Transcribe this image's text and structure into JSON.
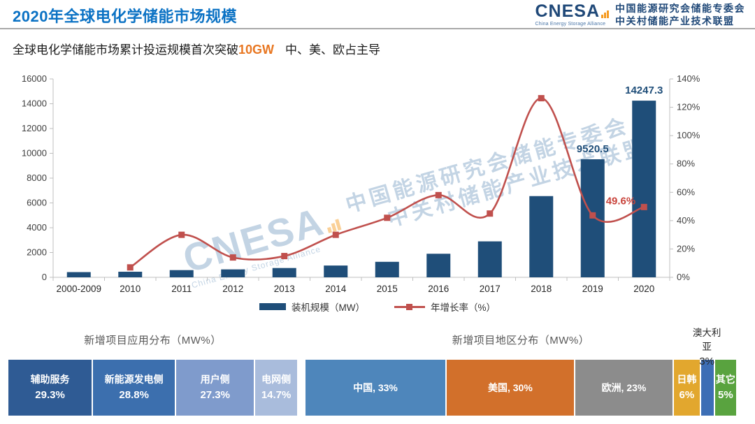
{
  "header": {
    "title": "2020年全球电化学储能市场规模",
    "logo": {
      "name": "CNESA",
      "tagline": "China Energy Storage Alliance",
      "org_line1": "中国能源研究会储能专委会",
      "org_line2": "中关村储能产业技术联盟"
    },
    "subtitle_prefix": "全球电化学储能市场累计投运规模首次突破",
    "subtitle_highlight": "10GW",
    "subtitle_suffix": "中、美、欧占主导"
  },
  "watermark": {
    "name": "CNESA",
    "tagline": "China Energy Storage Alliance",
    "cn_line1": "中国能源研究会储能专委会",
    "cn_line2": "中关村储能产业技术联盟"
  },
  "colors": {
    "axis": "#BFBFBF",
    "bar": "#1F4E79",
    "line": "#C0504D",
    "title_blue": "#0B72C4",
    "highlight_orange": "#E87722"
  },
  "chart_data": [
    {
      "type": "bar",
      "subtype": "bar-line-combo",
      "categories": [
        "2000-2009",
        "2010",
        "2011",
        "2012",
        "2013",
        "2014",
        "2015",
        "2016",
        "2017",
        "2018",
        "2019",
        "2020"
      ],
      "series": [
        {
          "name": "装机规模（MW）",
          "kind": "bar",
          "color": "#1F4E79",
          "axis": "left",
          "values": [
            420,
            450,
            580,
            640,
            750,
            950,
            1250,
            1900,
            2900,
            6550,
            9520.5,
            14247.3
          ]
        },
        {
          "name": "年增长率（%）",
          "kind": "line",
          "color": "#C0504D",
          "axis": "right",
          "values": [
            null,
            7,
            30,
            14,
            15,
            30,
            42,
            58,
            45,
            126.4,
            43.7,
            49.6
          ]
        }
      ],
      "y_left": {
        "min": 0,
        "max": 16000,
        "step": 2000
      },
      "y_right": {
        "min": 0,
        "max": 140,
        "step": 20,
        "suffix": "%"
      },
      "bar_value_labels": [
        {
          "category": "2019",
          "text": "9520.5"
        },
        {
          "category": "2020",
          "text": "14247.3"
        }
      ],
      "line_value_labels": [
        {
          "category": "2020",
          "text": "49.6%"
        }
      ],
      "legend_position": "bottom",
      "grid": false
    },
    {
      "type": "bar",
      "subtype": "stacked-horizontal",
      "title": "新增项目应用分布（MW%）",
      "segments": [
        {
          "label": "辅助服务",
          "pct": "29.3%",
          "value": 29.3,
          "color": "#2F5B94",
          "label_lines": [
            "辅助服务",
            "29.3%"
          ]
        },
        {
          "label": "新能源发电侧",
          "pct": "28.8%",
          "value": 28.8,
          "color": "#3C6FAE",
          "label_lines": [
            "新能源发电侧",
            "28.8%"
          ]
        },
        {
          "label": "用户侧",
          "pct": "27.3%",
          "value": 27.3,
          "color": "#7F9BCC",
          "label_lines": [
            "用户侧",
            "27.3%"
          ]
        },
        {
          "label": "电网侧",
          "pct": "14.7%",
          "value": 14.7,
          "color": "#A9BCDC",
          "label_lines": [
            "电网侧",
            "14.7%"
          ]
        }
      ]
    },
    {
      "type": "bar",
      "subtype": "stacked-horizontal",
      "title": "新增项目地区分布（MW%）",
      "segments": [
        {
          "label": "中国",
          "pct": "33%",
          "value": 33,
          "color": "#4E86BB",
          "label_lines": [
            "中国, 33%"
          ]
        },
        {
          "label": "美国",
          "pct": "30%",
          "value": 30,
          "color": "#D2702B",
          "label_lines": [
            "美国, 30%"
          ]
        },
        {
          "label": "欧洲",
          "pct": "23%",
          "value": 23,
          "color": "#8C8C8C",
          "label_lines": [
            "欧洲, 23%"
          ]
        },
        {
          "label": "日韩",
          "pct": "6%",
          "value": 6,
          "color": "#E2A72E",
          "label_lines": [
            "日韩",
            "6%"
          ]
        },
        {
          "label": "澳大利亚",
          "pct": "3%",
          "value": 3,
          "color": "#3D6EB5",
          "label_lines": []
        },
        {
          "label": "其它",
          "pct": "5%",
          "value": 5,
          "color": "#59A33F",
          "label_lines": [
            "其它",
            "5%"
          ]
        }
      ],
      "callout": {
        "lines": [
          "澳大利亚",
          "3%"
        ],
        "center_pct": 93.2
      }
    }
  ]
}
